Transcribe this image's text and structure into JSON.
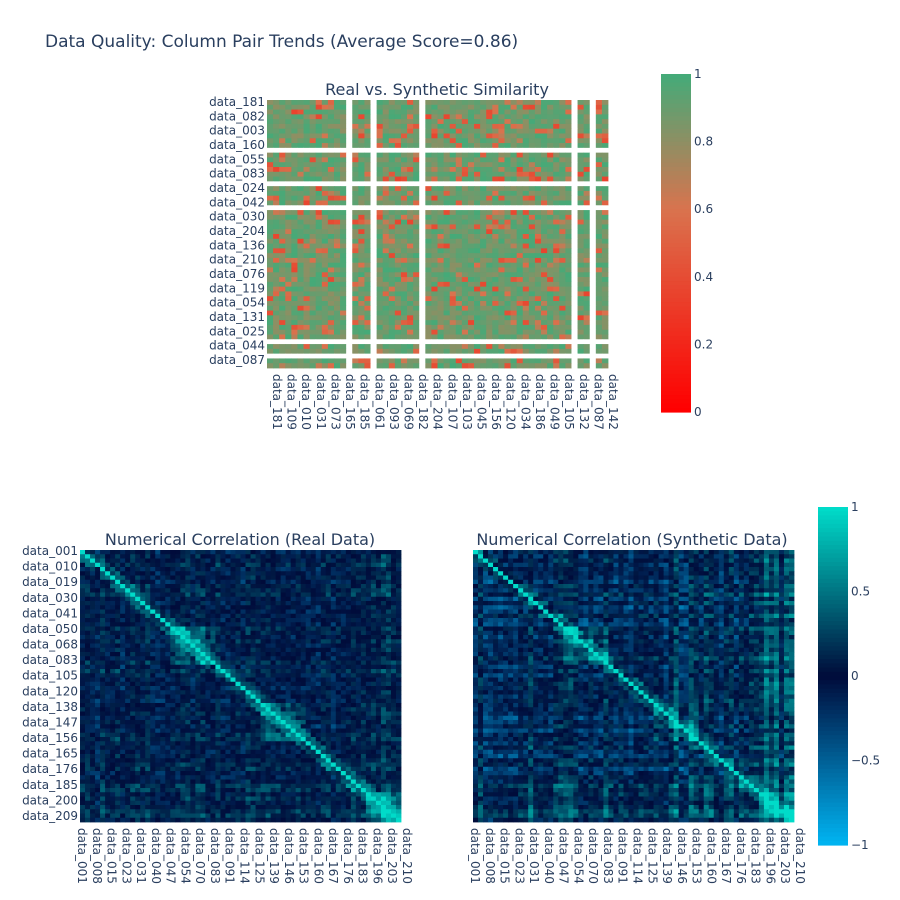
{
  "title": "Data Quality: Column Pair Trends (Average Score=0.86)",
  "colors": {
    "similarity_low": "#ff0000",
    "similarity_mid": "#d9734e",
    "similarity_high": "#45aa78",
    "corr_neg": "#00b3f0",
    "corr_zero": "#000b3a",
    "corr_pos": "#00dbc9"
  },
  "chart_data": [
    {
      "type": "heatmap",
      "title": "Real vs. Synthetic Similarity",
      "y_tick_labels": [
        "data_181",
        "data_082",
        "data_003",
        "data_160",
        "data_055",
        "data_083",
        "data_024",
        "data_042",
        "data_030",
        "data_204",
        "data_136",
        "data_210",
        "data_076",
        "data_119",
        "data_054",
        "data_131",
        "data_025",
        "data_044",
        "data_087"
      ],
      "x_tick_labels": [
        "data_181",
        "data_109",
        "data_010",
        "data_031",
        "data_073",
        "data_165",
        "data_185",
        "data_061",
        "data_093",
        "data_069",
        "data_182",
        "data_204",
        "data_107",
        "data_103",
        "data_045",
        "data_156",
        "data_120",
        "data_034",
        "data_186",
        "data_049",
        "data_105",
        "data_132",
        "data_087",
        "data_142"
      ],
      "colorscale": {
        "min": 0,
        "max": 1,
        "tick_values": [
          0,
          0.2,
          0.4,
          0.6,
          0.8,
          1
        ],
        "tick_labels": [
          "0",
          "0.2",
          "0.4",
          "0.6",
          "0.8",
          "1"
        ]
      },
      "approx_mean": 0.86
    },
    {
      "type": "heatmap",
      "title": "Numerical Correlation (Real Data)",
      "y_tick_labels": [
        "data_001",
        "data_010",
        "data_019",
        "data_030",
        "data_041",
        "data_050",
        "data_068",
        "data_083",
        "data_105",
        "data_120",
        "data_138",
        "data_147",
        "data_156",
        "data_165",
        "data_176",
        "data_185",
        "data_200",
        "data_209"
      ],
      "x_tick_labels": [
        "data_001",
        "data_008",
        "data_015",
        "data_023",
        "data_031",
        "data_040",
        "data_047",
        "data_054",
        "data_070",
        "data_083",
        "data_091",
        "data_114",
        "data_125",
        "data_139",
        "data_146",
        "data_153",
        "data_160",
        "data_167",
        "data_176",
        "data_183",
        "data_196",
        "data_203",
        "data_210"
      ],
      "value_range": [
        -1,
        1
      ],
      "diagonal": 1
    },
    {
      "type": "heatmap",
      "title": "Numerical Correlation (Synthetic Data)",
      "x_tick_labels": [
        "data_001",
        "data_008",
        "data_015",
        "data_023",
        "data_031",
        "data_040",
        "data_047",
        "data_054",
        "data_070",
        "data_083",
        "data_091",
        "data_114",
        "data_125",
        "data_139",
        "data_146",
        "data_153",
        "data_160",
        "data_167",
        "data_176",
        "data_183",
        "data_196",
        "data_203",
        "data_210"
      ],
      "colorscale": {
        "min": -1,
        "max": 1,
        "tick_values": [
          1,
          0.5,
          0,
          -0.5,
          -1
        ],
        "tick_labels": [
          "1",
          "0.5",
          "0",
          "−0.5",
          "−1"
        ]
      },
      "diagonal": 1
    }
  ]
}
